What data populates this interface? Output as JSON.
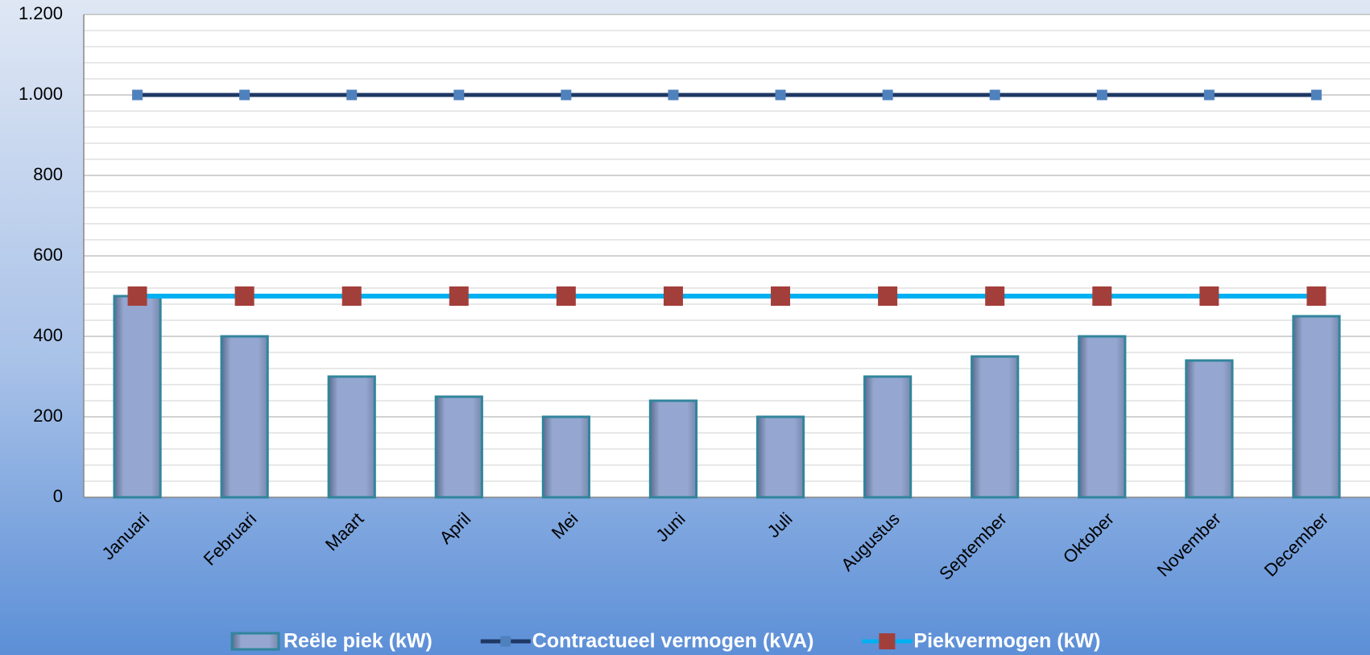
{
  "chart_data": {
    "type": "bar",
    "categories": [
      "Januari",
      "Februari",
      "Maart",
      "April",
      "Mei",
      "Juni",
      "Juli",
      "Augustus",
      "September",
      "Oktober",
      "November",
      "December"
    ],
    "series": [
      {
        "name": "Reële piek (kW)",
        "type": "bar",
        "color": "#95a7d0",
        "values": [
          500,
          400,
          300,
          250,
          200,
          240,
          200,
          300,
          350,
          400,
          340,
          450
        ]
      },
      {
        "name": "Contractueel vermogen (kVA)",
        "type": "line",
        "color": "#1f3864",
        "marker_color": "#4f81bd",
        "values": [
          1000,
          1000,
          1000,
          1000,
          1000,
          1000,
          1000,
          1000,
          1000,
          1000,
          1000,
          1000
        ]
      },
      {
        "name": "Piekvermogen (kW)",
        "type": "line",
        "color": "#00b0f0",
        "marker_color": "#a33f3b",
        "values": [
          500,
          500,
          500,
          500,
          500,
          500,
          500,
          500,
          500,
          500,
          500,
          500
        ]
      }
    ],
    "ylim": [
      0,
      1200
    ],
    "yticks": [
      0,
      200,
      400,
      600,
      800,
      {
        "value": 1000,
        "label": "1.000"
      },
      {
        "value": 1200,
        "label": "1.200"
      }
    ],
    "grid": true,
    "legend": "bottom"
  }
}
